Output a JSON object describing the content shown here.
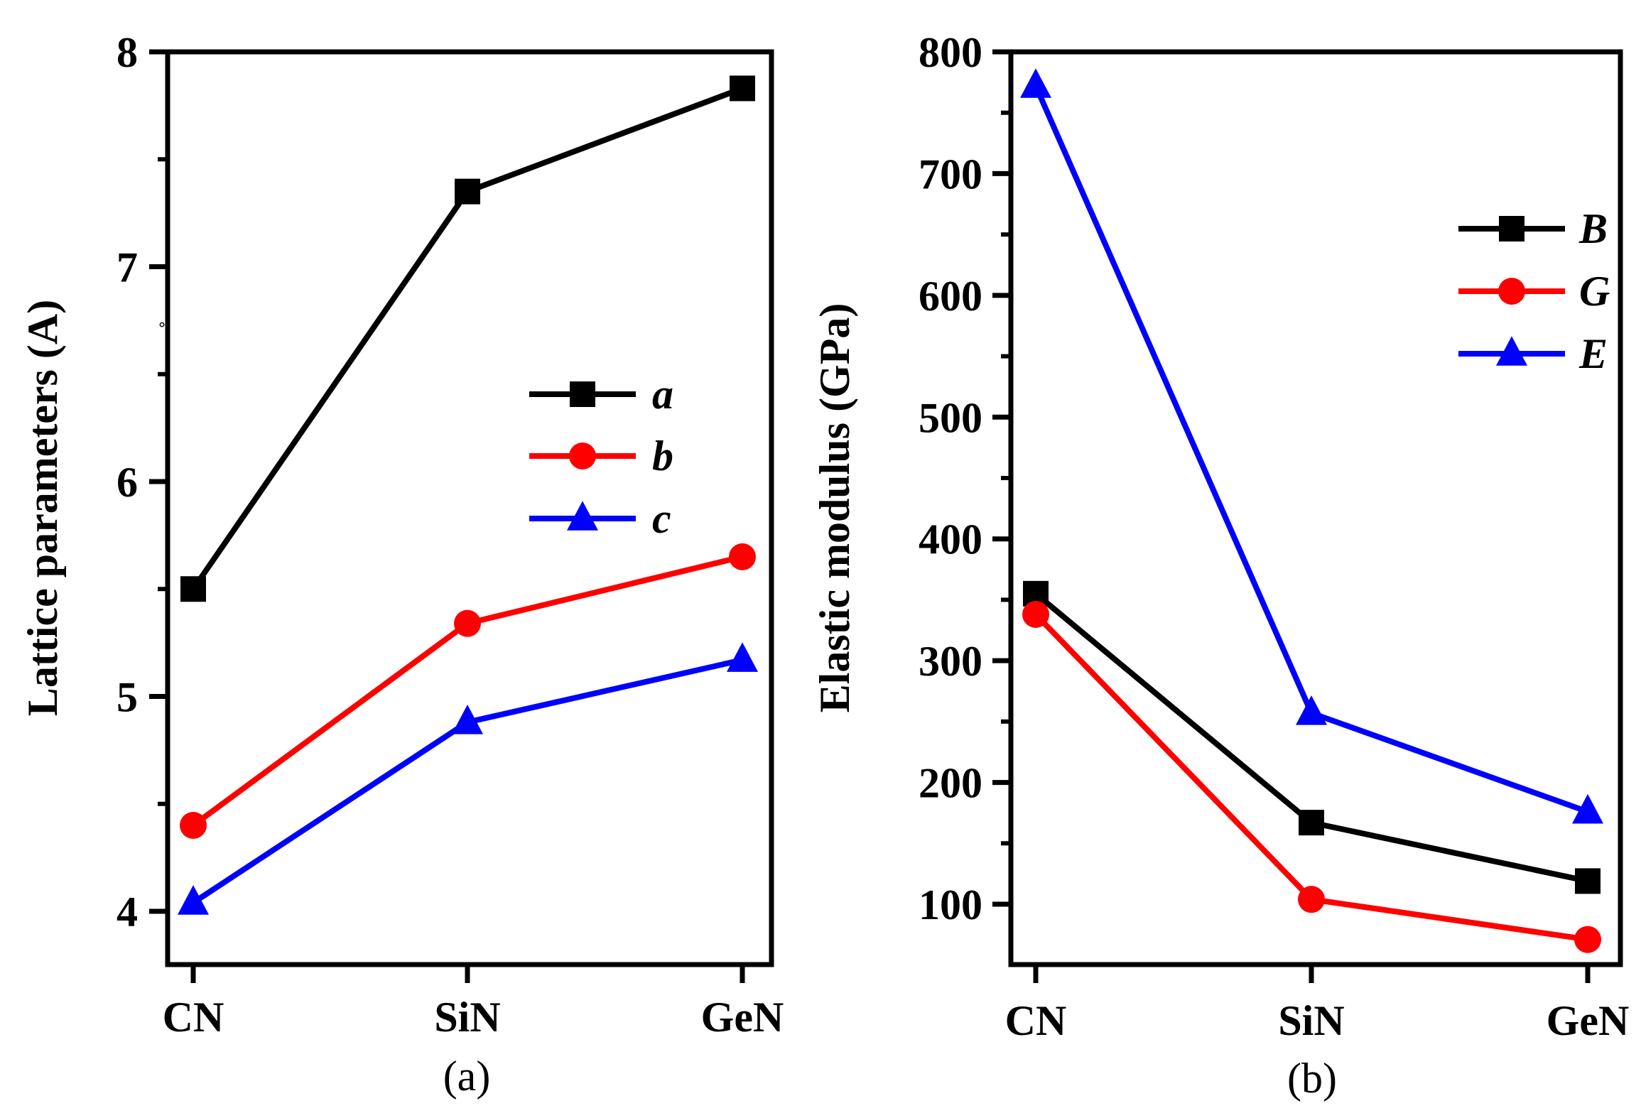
{
  "chart_data": [
    {
      "panel_id": "a",
      "type": "line",
      "caption": "(a)",
      "title": "",
      "xlabel": "",
      "ylabel": "Lattice parameters (A)",
      "ylim": [
        3.75,
        8
      ],
      "y_major_ticks": [
        4,
        5,
        6,
        7,
        8
      ],
      "y_minor_ticks": [
        4.5,
        5.5,
        6.5,
        7.5
      ],
      "y_tick_labels": [
        "4",
        "5",
        "6",
        "7",
        "8"
      ],
      "categories": [
        "CN",
        "SiN",
        "GeN"
      ],
      "grid": false,
      "legend_position": "center-right",
      "series": [
        {
          "name": "a",
          "color": "#000000",
          "marker": "square",
          "values": [
            5.5,
            7.35,
            7.83
          ]
        },
        {
          "name": "b",
          "color": "#ff0000",
          "marker": "circle",
          "values": [
            4.4,
            5.34,
            5.65
          ]
        },
        {
          "name": "c",
          "color": "#0000ff",
          "marker": "triangle",
          "values": [
            4.04,
            4.88,
            5.17
          ]
        }
      ]
    },
    {
      "panel_id": "b",
      "type": "line",
      "caption": "(b)",
      "title": "",
      "xlabel": "",
      "ylabel": "Elastic modulus (GPa)",
      "ylim": [
        50,
        800
      ],
      "y_major_ticks": [
        100,
        200,
        300,
        400,
        500,
        600,
        700,
        800
      ],
      "y_minor_ticks": [
        150,
        250,
        350,
        450,
        550,
        650,
        750
      ],
      "y_tick_labels": [
        "100",
        "200",
        "300",
        "400",
        "500",
        "600",
        "700",
        "800"
      ],
      "categories": [
        "CN",
        "SiN",
        "GeN"
      ],
      "grid": false,
      "legend_position": "top-right",
      "series": [
        {
          "name": "B",
          "color": "#000000",
          "marker": "square",
          "values": [
            355,
            167,
            119
          ]
        },
        {
          "name": "G",
          "color": "#ff0000",
          "marker": "circle",
          "values": [
            338,
            104,
            71
          ]
        },
        {
          "name": "E",
          "color": "#0000ff",
          "marker": "triangle",
          "values": [
            772,
            257,
            176
          ]
        }
      ]
    }
  ]
}
